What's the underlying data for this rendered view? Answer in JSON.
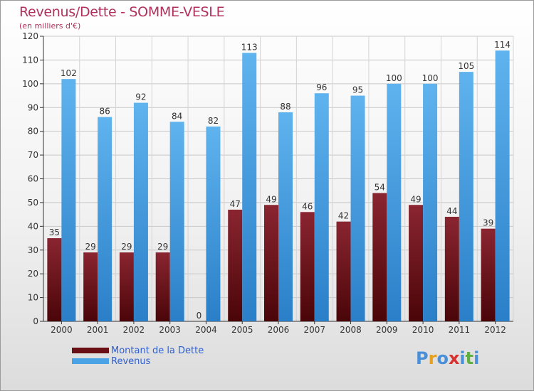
{
  "chart_data": {
    "type": "bar",
    "title": "Revenus/Dette - SOMME-VESLE",
    "subtitle": "(en milliers d'€)",
    "categories": [
      "2000",
      "2001",
      "2002",
      "2003",
      "2004",
      "2005",
      "2006",
      "2007",
      "2008",
      "2009",
      "2010",
      "2011",
      "2012"
    ],
    "series": [
      {
        "name": "Montant de la Dette",
        "color": "#7a1a1f",
        "values": [
          35,
          29,
          29,
          29,
          0,
          47,
          49,
          46,
          42,
          54,
          49,
          44,
          39
        ]
      },
      {
        "name": "Revenus",
        "color": "#4aa3e4",
        "values": [
          102,
          86,
          92,
          84,
          82,
          113,
          88,
          96,
          95,
          100,
          100,
          105,
          114
        ]
      }
    ],
    "ylim": [
      0,
      120
    ],
    "yticks": [
      0,
      10,
      20,
      30,
      40,
      50,
      60,
      70,
      80,
      90,
      100,
      110,
      120
    ],
    "grid": true,
    "legend_position": "bottom-left"
  },
  "logo": {
    "text": "Proxiti",
    "colors": [
      "#4a90d9",
      "#e8a020",
      "#4a90d9",
      "#d93030",
      "#4a90d9",
      "#60b040",
      "#4a90d9"
    ]
  }
}
